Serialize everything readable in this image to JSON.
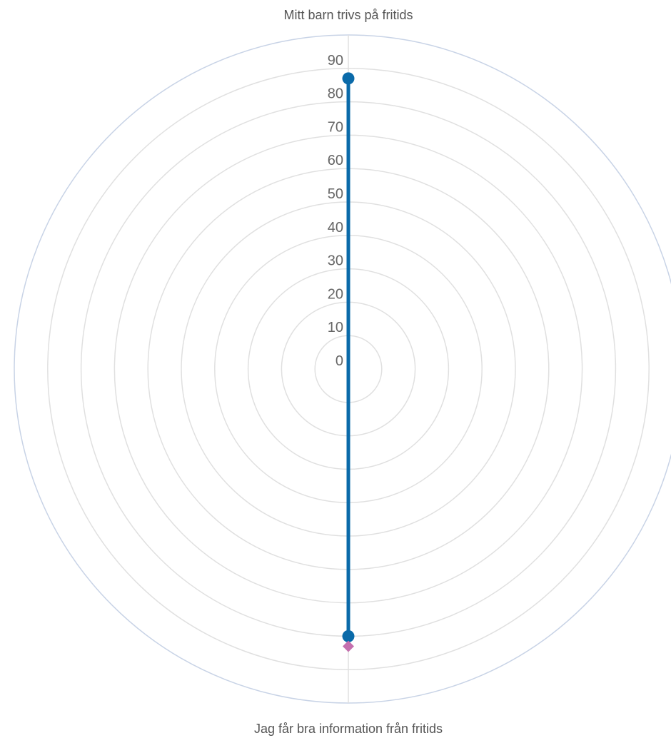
{
  "chart_data": {
    "type": "radar",
    "categories": [
      "Mitt barn trivs på fritids",
      "Jag får bra information från fritids"
    ],
    "radial_axis": {
      "min": 0,
      "max": 100,
      "ticks": [
        0,
        10,
        20,
        30,
        40,
        50,
        60,
        70,
        80,
        90
      ]
    },
    "grid": true,
    "series": [
      {
        "marker": "circle",
        "color": "#0a6aa9",
        "values": [
          87,
          80
        ]
      },
      {
        "marker": "diamond",
        "color": "#c46fae",
        "values": [
          null,
          83
        ]
      }
    ],
    "colors": {
      "grid": "#e0e0e0",
      "outer_ring": "#c8d3e6",
      "axis_line": "#e0e0e0"
    }
  }
}
